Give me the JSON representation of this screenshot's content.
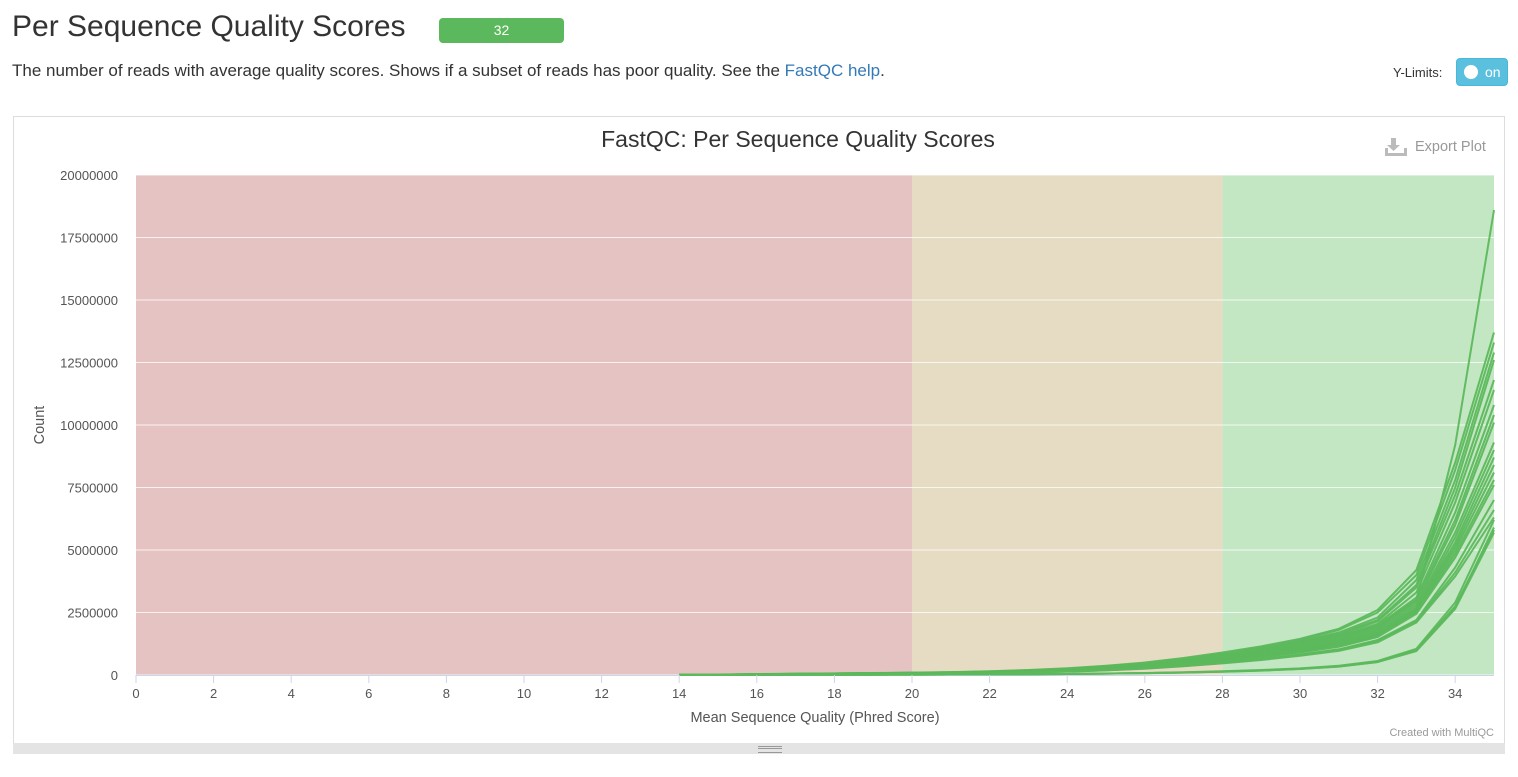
{
  "section": {
    "title": "Per Sequence Quality Scores",
    "badge": "32",
    "description_text": "The number of reads with average quality scores. Shows if a subset of reads has poor quality. See the ",
    "help_link": "FastQC help",
    "description_end": ".",
    "ylimits_label": "Y-Limits:",
    "ylimits_toggle": "on"
  },
  "plot": {
    "export_label": "Export Plot",
    "credit": "Created with MultiQC",
    "colors": {
      "line": "#5cb85c",
      "fail_band": "#e6c3c3",
      "warn_band": "#e6dcc3",
      "pass_band": "#c3e6c3"
    }
  },
  "chart_data": {
    "type": "line",
    "title": "FastQC: Per Sequence Quality Scores",
    "xlabel": "Mean Sequence Quality (Phred Score)",
    "ylabel": "Count",
    "xlim": [
      0,
      35
    ],
    "ylim": [
      0,
      20000000
    ],
    "grid": true,
    "legend": "none",
    "x_ticks": [
      "0",
      "2",
      "4",
      "6",
      "8",
      "10",
      "12",
      "14",
      "16",
      "18",
      "20",
      "22",
      "24",
      "26",
      "28",
      "30",
      "32",
      "34"
    ],
    "y_ticks": [
      "0",
      "2500000",
      "5000000",
      "7500000",
      "10000000",
      "12500000",
      "15000000",
      "17500000",
      "20000000"
    ],
    "bands": [
      {
        "from": 0,
        "to": 20,
        "zone": "fail"
      },
      {
        "from": 20,
        "to": 28,
        "zone": "warn"
      },
      {
        "from": 28,
        "to": 35,
        "zone": "pass"
      }
    ],
    "x": [
      14,
      15,
      16,
      17,
      18,
      19,
      20,
      21,
      22,
      23,
      24,
      25,
      26,
      27,
      28,
      29,
      30,
      31,
      32,
      33,
      34,
      35
    ],
    "series": [
      {
        "values": [
          5000,
          15000,
          30000,
          45000,
          60000,
          70000,
          85000,
          100000,
          130000,
          170000,
          230000,
          320000,
          430000,
          600000,
          780000,
          1000000,
          1250000,
          1550000,
          1950000,
          3000000,
          9200000,
          18600000
        ]
      },
      {
        "values": [
          6000,
          18000,
          35000,
          50000,
          65000,
          80000,
          95000,
          115000,
          150000,
          200000,
          270000,
          370000,
          500000,
          680000,
          900000,
          1150000,
          1450000,
          1850000,
          2600000,
          4200000,
          8500000,
          13700000
        ]
      },
      {
        "values": [
          5500,
          16000,
          32000,
          48000,
          62000,
          75000,
          90000,
          110000,
          140000,
          190000,
          250000,
          350000,
          470000,
          650000,
          850000,
          1100000,
          1400000,
          1800000,
          2500000,
          4000000,
          8200000,
          13300000
        ]
      },
      {
        "values": [
          5000,
          15000,
          30000,
          46000,
          60000,
          72000,
          88000,
          105000,
          135000,
          180000,
          240000,
          335000,
          450000,
          620000,
          820000,
          1060000,
          1350000,
          1700000,
          2300000,
          3800000,
          7800000,
          12900000
        ]
      },
      {
        "values": [
          4800,
          14000,
          29000,
          44000,
          58000,
          70000,
          85000,
          100000,
          130000,
          175000,
          235000,
          325000,
          440000,
          600000,
          800000,
          1040000,
          1320000,
          1650000,
          2200000,
          3600000,
          7500000,
          12600000
        ]
      },
      {
        "values": [
          4500,
          13000,
          27000,
          42000,
          55000,
          66000,
          80000,
          96000,
          125000,
          165000,
          225000,
          310000,
          420000,
          580000,
          770000,
          1000000,
          1280000,
          1600000,
          2150000,
          3500000,
          7200000,
          11800000
        ]
      },
      {
        "values": [
          4300,
          12500,
          26000,
          40000,
          53000,
          64000,
          78000,
          93000,
          120000,
          160000,
          215000,
          300000,
          405000,
          560000,
          740000,
          960000,
          1220000,
          1540000,
          2050000,
          3300000,
          6900000,
          11400000
        ]
      },
      {
        "values": [
          4200,
          12000,
          25000,
          39000,
          52000,
          62000,
          76000,
          90000,
          118000,
          155000,
          210000,
          290000,
          390000,
          540000,
          715000,
          930000,
          1180000,
          1480000,
          1980000,
          3100000,
          6500000,
          10800000
        ]
      },
      {
        "values": [
          4000,
          11500,
          24000,
          37000,
          50000,
          60000,
          73000,
          87000,
          113000,
          150000,
          200000,
          280000,
          378000,
          520000,
          690000,
          900000,
          1150000,
          1430000,
          1900000,
          3000000,
          6200000,
          10400000
        ]
      },
      {
        "values": [
          3900,
          11000,
          23000,
          36000,
          48000,
          58000,
          70000,
          84000,
          110000,
          145000,
          195000,
          270000,
          365000,
          505000,
          670000,
          870000,
          1110000,
          1390000,
          1850000,
          2900000,
          6000000,
          10100000
        ]
      },
      {
        "values": [
          3800,
          10500,
          22000,
          35000,
          47000,
          56000,
          68000,
          81000,
          106000,
          140000,
          188000,
          260000,
          352000,
          488000,
          648000,
          840000,
          1070000,
          1340000,
          1790000,
          2800000,
          5700000,
          9300000
        ]
      },
      {
        "values": [
          3700,
          10000,
          21000,
          34000,
          45000,
          54000,
          66000,
          78000,
          102000,
          135000,
          182000,
          252000,
          340000,
          470000,
          625000,
          810000,
          1035000,
          1300000,
          1740000,
          2700000,
          5500000,
          9000000
        ]
      },
      {
        "values": [
          3600,
          9800,
          20500,
          33000,
          44000,
          53000,
          64000,
          76000,
          99000,
          131000,
          176000,
          244000,
          330000,
          457000,
          607000,
          790000,
          1005000,
          1260000,
          1690000,
          2650000,
          5300000,
          8700000
        ]
      },
      {
        "values": [
          3500,
          9500,
          20000,
          32000,
          43000,
          52000,
          62000,
          74000,
          96000,
          127000,
          171000,
          237000,
          320000,
          444000,
          590000,
          765000,
          975000,
          1225000,
          1640000,
          2600000,
          5150000,
          8400000
        ]
      },
      {
        "values": [
          3400,
          9200,
          19500,
          31000,
          42000,
          50000,
          60000,
          72000,
          93000,
          123000,
          166000,
          230000,
          311000,
          432000,
          573000,
          745000,
          950000,
          1190000,
          1600000,
          2550000,
          5000000,
          8100000
        ]
      },
      {
        "values": [
          3300,
          9000,
          19000,
          30000,
          41000,
          49000,
          59000,
          70000,
          90000,
          120000,
          162000,
          224000,
          302000,
          420000,
          558000,
          725000,
          925000,
          1160000,
          1560000,
          2500000,
          4850000,
          7800000
        ]
      },
      {
        "values": [
          3200,
          8700,
          18500,
          29500,
          40000,
          48000,
          58000,
          68000,
          88000,
          117000,
          157000,
          218000,
          294000,
          408000,
          542000,
          705000,
          900000,
          1130000,
          1520000,
          2450000,
          4700000,
          7600000
        ]
      },
      {
        "values": [
          3000,
          8000,
          17000,
          27000,
          37000,
          44000,
          53000,
          62000,
          80000,
          106000,
          143000,
          198000,
          268000,
          372000,
          494000,
          642000,
          820000,
          1030000,
          1400000,
          2200000,
          4300000,
          7000000
        ]
      },
      {
        "values": [
          2900,
          7800,
          16500,
          26000,
          36000,
          43000,
          51000,
          60000,
          78000,
          103000,
          139000,
          192000,
          260000,
          361000,
          480000,
          624000,
          796000,
          1000000,
          1360000,
          2150000,
          4100000,
          6600000
        ]
      },
      {
        "values": [
          2800,
          7500,
          16000,
          25000,
          35000,
          42000,
          50000,
          58000,
          75000,
          99000,
          134000,
          185000,
          251000,
          348000,
          463000,
          602000,
          768000,
          965000,
          1310000,
          2100000,
          3950000,
          6300000
        ]
      },
      {
        "values": [
          500,
          1500,
          3500,
          7000,
          11000,
          14000,
          17000,
          21000,
          27000,
          35000,
          46000,
          62000,
          82000,
          110000,
          148000,
          198000,
          265000,
          370000,
          560000,
          1050000,
          2900000,
          6200000
        ]
      },
      {
        "values": [
          450,
          1300,
          3200,
          6500,
          10000,
          13000,
          16000,
          19500,
          25000,
          32000,
          42000,
          57000,
          76000,
          102000,
          138000,
          186000,
          250000,
          350000,
          535000,
          1000000,
          2750000,
          5800000
        ]
      },
      {
        "values": [
          400,
          1200,
          3000,
          6000,
          9500,
          12000,
          15000,
          18500,
          24000,
          30000,
          40000,
          54000,
          72000,
          97000,
          130000,
          176000,
          238000,
          335000,
          515000,
          960000,
          2650000,
          5700000
        ]
      },
      {
        "values": [
          420,
          1250,
          3100,
          6200,
          9800,
          12500,
          15500,
          19000,
          24500,
          31000,
          41000,
          55000,
          74000,
          99000,
          134000,
          181000,
          244000,
          342000,
          525000,
          980000,
          2700000,
          5900000
        ]
      }
    ]
  }
}
